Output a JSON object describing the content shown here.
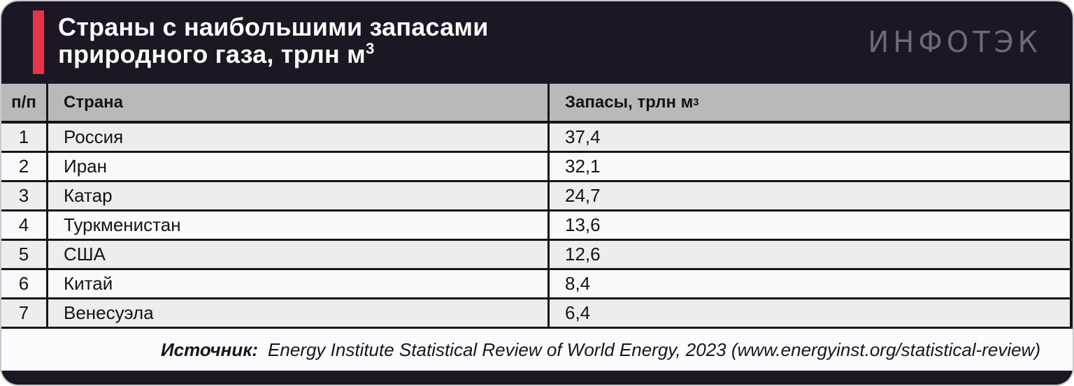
{
  "header": {
    "title_line1": "Страны с наибольшими запасами",
    "title_line2_prefix": "природного газа, трлн м",
    "title_sup": "3",
    "logo_text": "ИНФОТЭК"
  },
  "table": {
    "col_num_label": "п/п",
    "col_country_label": "Страна",
    "col_value_prefix": "Запасы, трлн м",
    "col_value_sup": "3",
    "rows": [
      {
        "num": "1",
        "country": "Россия",
        "value": "37,4"
      },
      {
        "num": "2",
        "country": "Иран",
        "value": "32,1"
      },
      {
        "num": "3",
        "country": "Катар",
        "value": "24,7"
      },
      {
        "num": "4",
        "country": "Туркменистан",
        "value": "13,6"
      },
      {
        "num": "5",
        "country": "США",
        "value": "12,6"
      },
      {
        "num": "6",
        "country": "Китай",
        "value": "8,4"
      },
      {
        "num": "7",
        "country": "Венесуэла",
        "value": "6,4"
      }
    ]
  },
  "footer": {
    "source_label": "Источник:",
    "source_text": "Energy Institute Statistical Review of World Energy, 2023 (www.energyinst.org/statistical-review)"
  },
  "colors": {
    "accent_red": "#e7344a",
    "header_dark": "#1c1723",
    "table_header_gray": "#b9b9ba",
    "row_odd": "#ededef",
    "row_even": "#f9f9fc",
    "logo_gray": "#6e6975",
    "grid_black": "#161616"
  },
  "chart_data": {
    "type": "table",
    "title": "Страны с наибольшими запасами природного газа, трлн м³",
    "columns": [
      "п/п",
      "Страна",
      "Запасы, трлн м³"
    ],
    "categories": [
      "Россия",
      "Иран",
      "Катар",
      "Туркменистан",
      "США",
      "Китай",
      "Венесуэла"
    ],
    "values": [
      37.4,
      32.1,
      24.7,
      13.6,
      12.6,
      8.4,
      6.4
    ],
    "units": "трлн м³",
    "source": "Energy Institute Statistical Review of World Energy, 2023 (www.energyinst.org/statistical-review)"
  }
}
